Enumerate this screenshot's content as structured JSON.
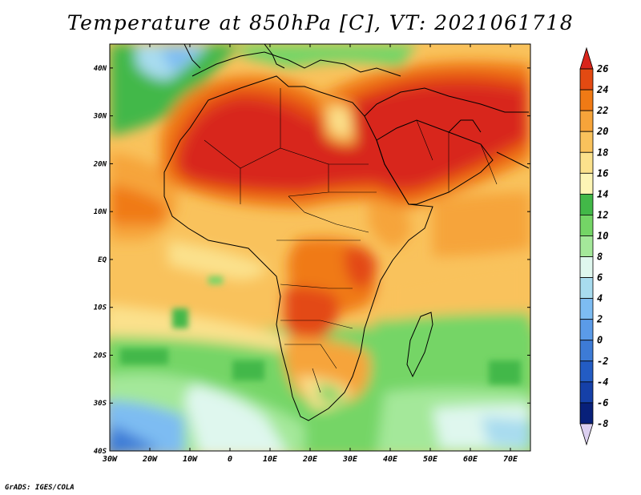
{
  "title": "Temperature at 850hPa [C], VT: 2021061718",
  "footer": "GrADS: IGES/COLA",
  "map": {
    "lon_range": [
      -30,
      75
    ],
    "lat_range": [
      -40,
      45
    ],
    "lon_ticks": [
      "30W",
      "20W",
      "10W",
      "0",
      "10E",
      "20E",
      "30E",
      "40E",
      "50E",
      "60E",
      "70E"
    ],
    "lat_ticks": [
      "40N",
      "30N",
      "20N",
      "10N",
      "EQ",
      "10S",
      "20S",
      "30S",
      "40S"
    ],
    "variable": "Temperature at 850hPa",
    "unit": "C"
  },
  "colorbar": {
    "labels": [
      "26",
      "24",
      "22",
      "20",
      "18",
      "16",
      "14",
      "12",
      "10",
      "8",
      "6",
      "4",
      "2",
      "0",
      "-2",
      "-4",
      "-6",
      "-8"
    ],
    "colors": [
      "#d8251b",
      "#e34a12",
      "#f07a15",
      "#f6a43a",
      "#f9c25c",
      "#fbe18c",
      "#fdf5b5",
      "#42b848",
      "#74d566",
      "#a4e89a",
      "#dff7ee",
      "#a8dcef",
      "#7dbcf2",
      "#5b9be8",
      "#3d7bd6",
      "#235cc4",
      "#1540a8",
      "#08207a",
      "#dcd0f0"
    ]
  }
}
